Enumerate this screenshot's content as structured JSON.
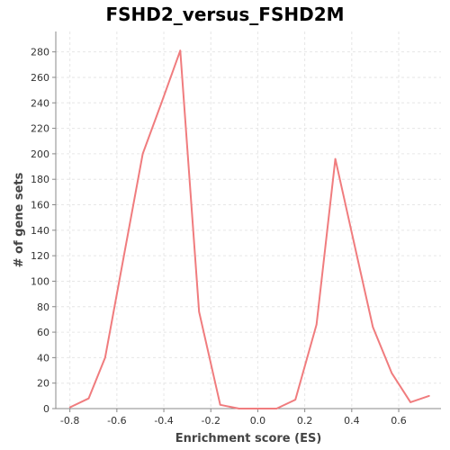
{
  "chart_data": {
    "type": "line",
    "title": "FSHD2_versus_FSHD2M",
    "xlabel": "Enrichment score (ES)",
    "ylabel": "# of gene sets",
    "xlim": [
      -0.86,
      0.78
    ],
    "ylim": [
      0,
      296
    ],
    "x_ticks": [
      -0.8,
      -0.6,
      -0.4,
      -0.2,
      0.0,
      0.2,
      0.4,
      0.6
    ],
    "x_tick_labels": [
      "-0.8",
      "-0.6",
      "-0.4",
      "-0.2",
      "0.0",
      "0.2",
      "0.4",
      "0.6"
    ],
    "y_ticks": [
      0,
      20,
      40,
      60,
      80,
      100,
      120,
      140,
      160,
      180,
      200,
      220,
      240,
      260,
      280
    ],
    "grid": true,
    "series": [
      {
        "color": "#f07c7e",
        "x": [
          -0.8,
          -0.72,
          -0.65,
          -0.57,
          -0.49,
          -0.41,
          -0.33,
          -0.25,
          -0.16,
          -0.08,
          0.0,
          0.08,
          0.16,
          0.25,
          0.33,
          0.41,
          0.49,
          0.57,
          0.65,
          0.73
        ],
        "y": [
          1,
          8,
          40,
          120,
          200,
          240,
          281,
          76,
          3,
          0,
          0,
          0,
          7,
          66,
          196,
          130,
          64,
          28,
          5,
          10
        ]
      }
    ]
  }
}
